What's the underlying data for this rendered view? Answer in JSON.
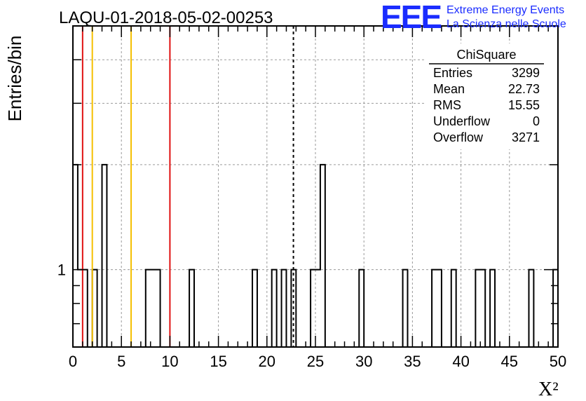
{
  "title": "LAQU-01-2018-05-02-00253",
  "logo": {
    "letters": "EEE",
    "line1": "Extreme Energy Events",
    "line2": "La Scienza nelle Scuole",
    "color": "#1a2cff"
  },
  "stats": {
    "name": "ChiSquare",
    "rows": [
      {
        "label": "Entries",
        "value": "3299"
      },
      {
        "label": "Mean",
        "value": "22.73"
      },
      {
        "label": "RMS",
        "value": "15.55"
      },
      {
        "label": "Underflow",
        "value": "0"
      },
      {
        "label": "Overflow",
        "value": "3271"
      }
    ]
  },
  "chart_data": {
    "type": "bar",
    "histogram": true,
    "xlabel": "X²",
    "ylabel": "Entries/bin",
    "xlim": [
      0,
      50
    ],
    "ylim": [
      0.6,
      5
    ],
    "y_log_scale": true,
    "grid": true,
    "bin_width": 0.5,
    "x_ticks": [
      0,
      5,
      10,
      15,
      20,
      25,
      30,
      35,
      40,
      45,
      50
    ],
    "y_tick_labels": [
      {
        "value": 1,
        "label": "1"
      }
    ],
    "bins": [
      {
        "low": 0.0,
        "high": 0.5,
        "count": 2
      },
      {
        "low": 0.5,
        "high": 1.5,
        "count": 1
      },
      {
        "low": 2.0,
        "high": 2.5,
        "count": 1
      },
      {
        "low": 3.0,
        "high": 3.5,
        "count": 2
      },
      {
        "low": 7.5,
        "high": 9.0,
        "count": 1
      },
      {
        "low": 12.0,
        "high": 12.5,
        "count": 1
      },
      {
        "low": 18.5,
        "high": 19.0,
        "count": 1
      },
      {
        "low": 20.5,
        "high": 21.0,
        "count": 1
      },
      {
        "low": 21.5,
        "high": 22.0,
        "count": 1
      },
      {
        "low": 22.5,
        "high": 23.0,
        "count": 1
      },
      {
        "low": 24.5,
        "high": 25.5,
        "count": 1
      },
      {
        "low": 25.5,
        "high": 26.0,
        "count": 2
      },
      {
        "low": 29.5,
        "high": 30.0,
        "count": 1
      },
      {
        "low": 34.0,
        "high": 34.5,
        "count": 1
      },
      {
        "low": 37.0,
        "high": 38.0,
        "count": 1
      },
      {
        "low": 39.0,
        "high": 39.5,
        "count": 1
      },
      {
        "low": 41.5,
        "high": 42.5,
        "count": 1
      },
      {
        "low": 43.0,
        "high": 43.5,
        "count": 1
      },
      {
        "low": 47.0,
        "high": 47.5,
        "count": 1
      },
      {
        "low": 49.5,
        "high": 50.0,
        "count": 1
      }
    ],
    "vertical_lines": [
      {
        "x": 1.0,
        "color": "#e01010",
        "style": "solid"
      },
      {
        "x": 2.0,
        "color": "#f5c000",
        "style": "solid"
      },
      {
        "x": 6.0,
        "color": "#f5c000",
        "style": "solid"
      },
      {
        "x": 10.0,
        "color": "#e01010",
        "style": "solid"
      },
      {
        "x": 22.73,
        "color": "#000000",
        "style": "dashed"
      }
    ]
  }
}
